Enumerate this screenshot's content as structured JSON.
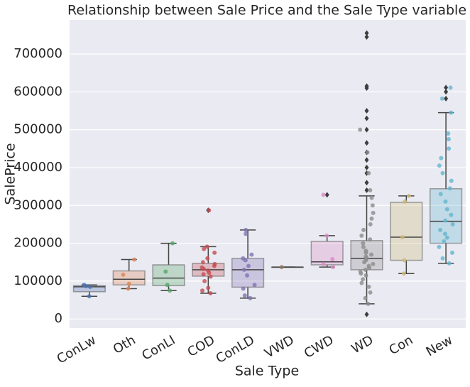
{
  "chart_data": {
    "type": "box",
    "title": "Relationship between Sale Price and the Sale Type variable",
    "x_label": "Sale Type",
    "y_label": "SalePrice",
    "categories": [
      "ConLw",
      "Oth",
      "ConLI",
      "COD",
      "ConLD",
      "VWD",
      "CWD",
      "WD",
      "Con",
      "New"
    ],
    "colors": [
      "#4c72b0",
      "#dd8452",
      "#55a868",
      "#c44e52",
      "#8172b3",
      "#937860",
      "#da8bc3",
      "#8c8c8c",
      "#ccb974",
      "#64b5cd"
    ],
    "ylim": [
      -24000,
      790000
    ],
    "yticks": [
      0,
      100000,
      200000,
      300000,
      400000,
      500000,
      600000,
      700000
    ],
    "grid": true,
    "boxes": [
      {
        "whislo": 60000,
        "q1": 72000,
        "med": 85000,
        "q3": 88000,
        "whishi": 90000,
        "fliers": [],
        "points": [
          60000,
          85000,
          90000,
          87000
        ]
      },
      {
        "whislo": 80000,
        "q1": 90000,
        "med": 105000,
        "q3": 127000,
        "whishi": 157000,
        "fliers": [],
        "points": [
          80000,
          93000,
          117000,
          157000
        ]
      },
      {
        "whislo": 75000,
        "q1": 88000,
        "med": 108000,
        "q3": 143000,
        "whishi": 200000,
        "fliers": [],
        "points": [
          75000,
          90000,
          125000,
          200000
        ]
      },
      {
        "whislo": 68000,
        "q1": 113000,
        "med": 130000,
        "q3": 147000,
        "whishi": 191000,
        "fliers": [
          287000
        ],
        "points": [
          68000,
          75000,
          82000,
          100000,
          112000,
          118000,
          122000,
          128000,
          132000,
          136000,
          140000,
          145000,
          150000,
          160000,
          175000,
          185000,
          191000,
          287000
        ]
      },
      {
        "whislo": 55000,
        "q1": 84000,
        "med": 130000,
        "q3": 160000,
        "whishi": 235000,
        "fliers": [],
        "points": [
          55000,
          62000,
          80000,
          90000,
          115000,
          130000,
          140000,
          155000,
          160000,
          170000,
          225000,
          235000
        ]
      },
      {
        "whislo": 137000,
        "q1": 137000,
        "med": 137000,
        "q3": 137000,
        "whishi": 137000,
        "fliers": [],
        "points": [
          137000
        ]
      },
      {
        "whislo": 137000,
        "q1": 143000,
        "med": 151000,
        "q3": 205000,
        "whishi": 220000,
        "fliers": [
          328000
        ],
        "points": [
          137000,
          145000,
          158000,
          220000,
          328000
        ]
      },
      {
        "whislo": 40000,
        "q1": 130000,
        "med": 160000,
        "q3": 207000,
        "whishi": 325000,
        "fliers": [
          12000,
          340000,
          360000,
          385000,
          400000,
          420000,
          440000,
          465000,
          500000,
          530000,
          550000,
          610000,
          615000,
          745000,
          755000
        ],
        "points": [
          40000,
          55000,
          70000,
          85000,
          95000,
          105000,
          115000,
          120000,
          125000,
          130000,
          135000,
          140000,
          145000,
          150000,
          155000,
          160000,
          165000,
          170000,
          175000,
          180000,
          190000,
          200000,
          210000,
          220000,
          235000,
          250000,
          265000,
          280000,
          300000,
          320000,
          340000,
          385000,
          440000,
          500000
        ]
      },
      {
        "whislo": 120000,
        "q1": 155000,
        "med": 216000,
        "q3": 308000,
        "whishi": 325000,
        "fliers": [],
        "points": [
          120000,
          155000,
          216000,
          310000,
          325000
        ]
      },
      {
        "whislo": 147000,
        "q1": 200000,
        "med": 258000,
        "q3": 344000,
        "whishi": 545000,
        "fliers": [
          582000,
          600000,
          611000
        ],
        "points": [
          147000,
          160000,
          175000,
          190000,
          205000,
          215000,
          225000,
          235000,
          250000,
          260000,
          275000,
          290000,
          310000,
          330000,
          345000,
          365000,
          385000,
          405000,
          425000,
          450000,
          475000,
          490000,
          545000,
          582000,
          611000
        ]
      }
    ]
  }
}
